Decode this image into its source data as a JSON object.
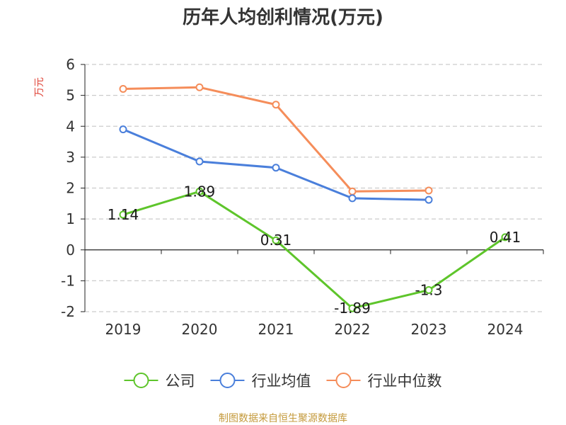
{
  "chart_data": {
    "type": "line",
    "title": "历年人均创利情况(万元)",
    "ylabel": "万元",
    "categories": [
      "2019",
      "2020",
      "2021",
      "2022",
      "2023",
      "2024"
    ],
    "ylim": [
      -2,
      6
    ],
    "yticks": [
      -2,
      -1,
      0,
      1,
      2,
      3,
      4,
      5,
      6
    ],
    "ytick_labels": [
      "-2",
      "-1",
      "0",
      "1",
      "2",
      "3",
      "4",
      "5",
      "6"
    ],
    "grid": true,
    "legend_position": "bottom",
    "series": [
      {
        "name": "公司",
        "color": "#5ec52b",
        "values": [
          1.14,
          1.89,
          0.31,
          -1.89,
          -1.3,
          0.41
        ],
        "data_labels": [
          "1.14",
          "1.89",
          "0.31",
          "-1.89",
          "-1.3",
          "0.41"
        ]
      },
      {
        "name": "行业均值",
        "color": "#4a7fdb",
        "values": [
          3.9,
          2.86,
          2.66,
          1.67,
          1.62,
          null
        ],
        "data_labels": []
      },
      {
        "name": "行业中位数",
        "color": "#f58d5a",
        "values": [
          5.21,
          5.26,
          4.7,
          1.89,
          1.92,
          null
        ],
        "data_labels": []
      }
    ]
  },
  "colors": {
    "ylabel": "#e0463a",
    "source": "#c49a3c",
    "axis": "#222222",
    "grid": "#cccccc"
  },
  "source": "制图数据来自恒生聚源数据库"
}
